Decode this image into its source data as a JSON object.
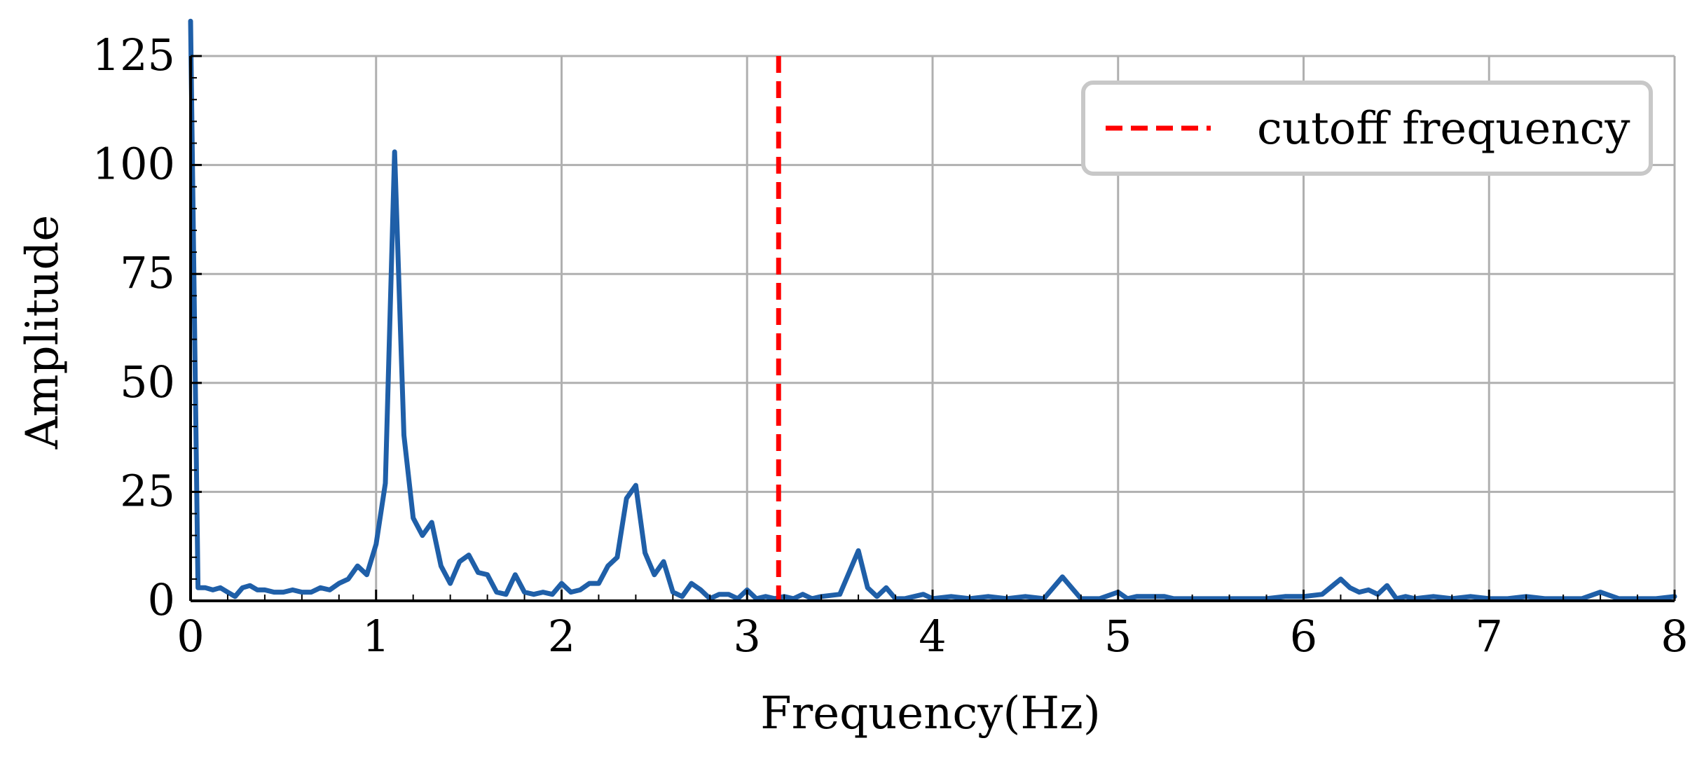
{
  "chart_data": {
    "type": "line",
    "title": "",
    "xlabel": "Frequency(Hz)",
    "ylabel": "Amplitude",
    "xlim": [
      0,
      8
    ],
    "ylim": [
      0,
      125
    ],
    "xticks": [
      0,
      1,
      2,
      3,
      4,
      5,
      6,
      7,
      8
    ],
    "yticks": [
      0,
      25,
      50,
      75,
      100,
      125
    ],
    "grid": true,
    "legend_position": "top-right",
    "series": [
      {
        "color": "#1f5fa8",
        "x": [
          0.0,
          0.04,
          0.08,
          0.12,
          0.16,
          0.2,
          0.24,
          0.28,
          0.32,
          0.36,
          0.4,
          0.45,
          0.5,
          0.55,
          0.6,
          0.65,
          0.7,
          0.75,
          0.8,
          0.85,
          0.9,
          0.95,
          1.0,
          1.05,
          1.1,
          1.15,
          1.2,
          1.25,
          1.3,
          1.35,
          1.4,
          1.45,
          1.5,
          1.55,
          1.6,
          1.65,
          1.7,
          1.75,
          1.8,
          1.85,
          1.9,
          1.95,
          2.0,
          2.05,
          2.1,
          2.15,
          2.2,
          2.25,
          2.3,
          2.35,
          2.4,
          2.45,
          2.5,
          2.55,
          2.6,
          2.65,
          2.7,
          2.75,
          2.8,
          2.85,
          2.9,
          2.95,
          3.0,
          3.05,
          3.1,
          3.15,
          3.2,
          3.25,
          3.3,
          3.35,
          3.4,
          3.5,
          3.6,
          3.65,
          3.7,
          3.75,
          3.8,
          3.85,
          3.9,
          3.95,
          4.0,
          4.1,
          4.2,
          4.3,
          4.4,
          4.5,
          4.6,
          4.7,
          4.8,
          4.9,
          5.0,
          5.05,
          5.1,
          5.2,
          5.25,
          5.3,
          5.4,
          5.5,
          5.6,
          5.7,
          5.8,
          5.9,
          6.0,
          6.1,
          6.2,
          6.25,
          6.3,
          6.35,
          6.4,
          6.45,
          6.5,
          6.55,
          6.6,
          6.7,
          6.8,
          6.9,
          7.0,
          7.1,
          7.2,
          7.3,
          7.4,
          7.5,
          7.6,
          7.7,
          7.8,
          7.9,
          8.0
        ],
        "y": [
          133,
          3,
          3,
          2.5,
          3,
          2,
          1,
          3,
          3.5,
          2.5,
          2.5,
          2,
          2,
          2.5,
          2,
          2,
          3,
          2.5,
          4,
          5,
          8,
          6,
          13,
          27,
          103,
          38,
          19,
          15,
          18,
          8,
          4,
          9,
          10.5,
          6.5,
          6,
          2,
          1.5,
          6,
          2,
          1.5,
          2,
          1.5,
          4,
          2,
          2.5,
          4,
          4,
          8,
          10,
          23.5,
          26.5,
          11,
          6,
          9,
          2,
          1,
          4,
          2.5,
          0.5,
          1.5,
          1.5,
          0.5,
          2.5,
          0.5,
          1,
          0.5,
          1,
          0.5,
          1.5,
          0.5,
          1,
          1.5,
          11.5,
          3,
          1,
          3,
          0.5,
          0.5,
          1,
          1.5,
          0.5,
          1,
          0.5,
          1,
          0.5,
          1,
          0.5,
          5.5,
          0.5,
          0.5,
          2,
          0.5,
          1,
          1,
          1,
          0.5,
          0.5,
          0.5,
          0.5,
          0.5,
          0.5,
          1,
          1,
          1.5,
          5,
          3,
          2,
          2.5,
          1.5,
          3.5,
          0.5,
          1,
          0.5,
          1,
          0.5,
          1,
          0.5,
          0.5,
          1,
          0.5,
          0.5,
          0.5,
          2,
          0.5,
          0.5,
          0.5,
          1
        ]
      }
    ],
    "vline": {
      "x": 3.17,
      "label": "cutoff frequency",
      "color": "#ff0000",
      "style": "dashed"
    }
  }
}
